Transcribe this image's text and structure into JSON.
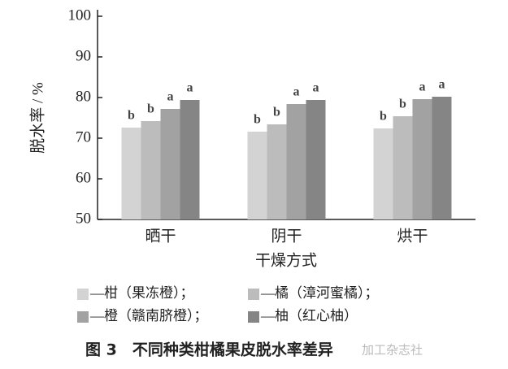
{
  "chart_data": {
    "type": "bar",
    "title": "图 3　不同种类柑橘果皮脱水率差异",
    "watermark": "加工杂志社",
    "y_label": "脱水率 / %",
    "x_label": "干燥方式",
    "categories": [
      "晒干",
      "阴干",
      "烘干"
    ],
    "series": [
      {
        "name": "—柑（果冻橙）；",
        "color": "#d3d3d3",
        "values": [
          72.6,
          71.6,
          72.4
        ],
        "significance": [
          "b",
          "b",
          "b"
        ]
      },
      {
        "name": "—橘（漳河蜜橘）；",
        "color": "#bcbcbc",
        "values": [
          74.2,
          73.4,
          75.4
        ],
        "significance": [
          "b",
          "b",
          "b"
        ]
      },
      {
        "name": "—橙（赣南脐橙）；",
        "color": "#a2a2a2",
        "values": [
          77.2,
          78.4,
          79.6
        ],
        "significance": [
          "a",
          "a",
          "a"
        ]
      },
      {
        "name": "—柚（红心柚）",
        "color": "#858585",
        "values": [
          79.4,
          79.4,
          80.2
        ],
        "significance": [
          "a",
          "a",
          "a"
        ]
      }
    ],
    "ylim": [
      50,
      100
    ],
    "yticks": [
      50,
      60,
      70,
      80,
      90,
      100
    ]
  }
}
